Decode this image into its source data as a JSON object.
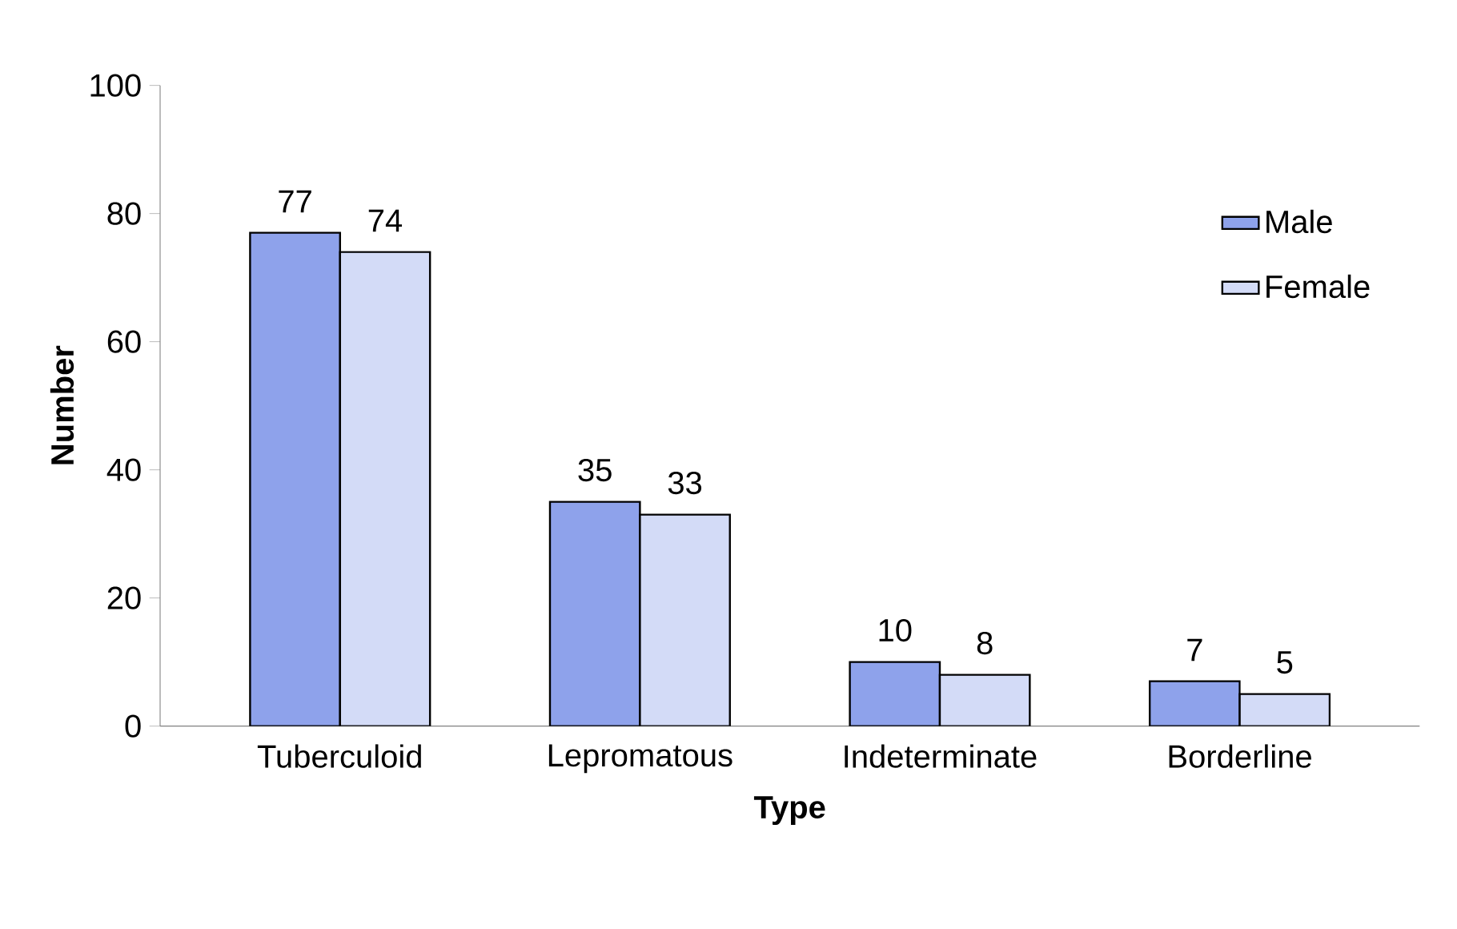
{
  "chart_data": {
    "type": "bar",
    "xlabel": "Type",
    "ylabel": "Number",
    "categories": [
      "Tuberculoid",
      "Lepromatous",
      "Indeterminate",
      "Borderline"
    ],
    "series": [
      {
        "name": "Male",
        "color": "#8ea2eb",
        "values": [
          77,
          35,
          10,
          7
        ]
      },
      {
        "name": "Female",
        "color": "#d3dbf7",
        "values": [
          74,
          33,
          8,
          5
        ]
      }
    ],
    "ylim": [
      0,
      100
    ],
    "yticks": [
      0,
      20,
      40,
      60,
      80,
      100
    ],
    "data_labels": true,
    "legend": "top right",
    "grid": false
  }
}
